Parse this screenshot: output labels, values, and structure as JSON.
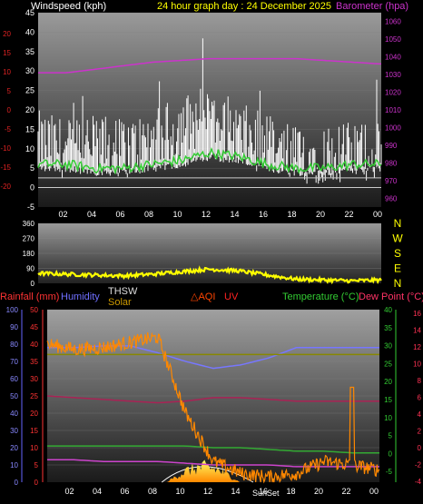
{
  "header": {
    "wind_title": "Windspeed (kph)",
    "graph_title": "24 hour graph day : 24 December 2025",
    "baro_title": "Barometer (hpa)"
  },
  "x_ticks": [
    "02",
    "04",
    "06",
    "08",
    "10",
    "12",
    "14",
    "16",
    "18",
    "20",
    "22",
    "00"
  ],
  "mid_panel": {
    "y_ticks": [
      "360",
      "270",
      "180",
      "90",
      "0"
    ],
    "compass": [
      "N",
      "W",
      "S",
      "E",
      "N"
    ]
  },
  "bottom_header": {
    "rainfall": "Rainfall (mm)",
    "humidity": "Humidity",
    "thsw": "THSW",
    "solar": "Solar",
    "aqi": "AQI",
    "uv": "UV",
    "temperature": "Temperature (°C)",
    "dewpoint": "Dew Point (°C)"
  },
  "sunset_label": "SunSet",
  "colors": {
    "wind_gust": "#ffffff",
    "wind_avg": "#33cc33",
    "barometer": "#cc33cc",
    "wind_dir": "#ffff00",
    "rain": "#ff4444",
    "humidity": "#7777ff",
    "temperature": "#33aa33",
    "dewpoint": "#aa2255",
    "solar": "#ffaa00",
    "uv_thsw": "#ff8800",
    "aqi": "#ff4400"
  },
  "chart_data": [
    {
      "type": "line",
      "panel": "wind-barometer",
      "x": [
        "00",
        "02",
        "04",
        "06",
        "08",
        "10",
        "12",
        "14",
        "16",
        "18",
        "20",
        "22",
        "00"
      ],
      "left_axis": {
        "label": "Windspeed (kph)",
        "ylim": [
          -5,
          45
        ],
        "ticks": [
          "45",
          "40",
          "35",
          "30",
          "25",
          "20",
          "15",
          "10",
          "5",
          "0",
          "-5"
        ]
      },
      "right_axis": {
        "label": "Barometer (hpa)",
        "ylim": [
          955,
          1065
        ],
        "ticks": [
          "1060",
          "1050",
          "1040",
          "1030",
          "1020",
          "1010",
          "1000",
          "990",
          "980",
          "970",
          "960"
        ]
      },
      "series": [
        {
          "name": "Wind Gust",
          "axis": "left",
          "values": [
            12,
            10,
            11,
            10,
            12,
            16,
            19,
            14,
            11,
            8,
            9,
            9,
            10
          ]
        },
        {
          "name": "Wind Average",
          "axis": "left",
          "values": [
            6,
            6,
            5,
            5,
            6,
            7,
            9,
            8,
            6,
            5,
            5,
            6,
            6
          ]
        },
        {
          "name": "Barometer",
          "axis": "right",
          "values": [
            1031,
            1031,
            1033,
            1035,
            1037,
            1038,
            1039,
            1039,
            1039,
            1039,
            1038,
            1037,
            1036
          ]
        }
      ]
    },
    {
      "type": "line",
      "panel": "wind-direction",
      "x": [
        "00",
        "02",
        "04",
        "06",
        "08",
        "10",
        "12",
        "14",
        "16",
        "18",
        "20",
        "22",
        "00"
      ],
      "ylim": [
        0,
        360
      ],
      "series": [
        {
          "name": "Wind Direction",
          "values": [
            60,
            55,
            50,
            45,
            55,
            70,
            85,
            75,
            50,
            25,
            20,
            15,
            20
          ]
        }
      ]
    },
    {
      "type": "line",
      "panel": "multi",
      "x": [
        "00",
        "02",
        "04",
        "06",
        "08",
        "10",
        "12",
        "14",
        "16",
        "18",
        "20",
        "22",
        "00"
      ],
      "left_axis": {
        "ticks": [
          "100",
          "90",
          "80",
          "70",
          "60",
          "50",
          "40",
          "30",
          "20",
          "10",
          "0"
        ],
        "ylim": [
          0,
          100
        ]
      },
      "rain_axis": {
        "ticks": [
          "50",
          "45",
          "40",
          "35",
          "30",
          "25",
          "20",
          "15",
          "10",
          "5",
          "0"
        ],
        "ylim": [
          0,
          50
        ]
      },
      "right_axis_temp": {
        "ticks": [
          "40",
          "35",
          "30",
          "25",
          "20",
          "15",
          "10",
          "5",
          "0",
          "-5"
        ],
        "ylim": [
          -8,
          40
        ]
      },
      "right_axis_dew": {
        "ticks": [
          "16",
          "14",
          "12",
          "10",
          "8",
          "6",
          "4",
          "2",
          "0",
          "-2",
          "-4"
        ],
        "ylim": [
          -4,
          17
        ]
      },
      "series": [
        {
          "name": "Humidity",
          "values": [
            78,
            78,
            79,
            79,
            75,
            70,
            66,
            68,
            72,
            78,
            78,
            78,
            78
          ]
        },
        {
          "name": "Temperature",
          "values": [
            1,
            1,
            1,
            1,
            1,
            0,
            0,
            0,
            0,
            -1,
            -1,
            -1,
            -1
          ]
        },
        {
          "name": "Dew Point",
          "values": [
            6,
            6,
            6,
            6,
            6,
            7,
            7,
            6,
            6,
            6,
            6,
            6,
            6
          ]
        },
        {
          "name": "THSW",
          "values": [
            35,
            33,
            35,
            34,
            38,
            6,
            2,
            -4,
            -6,
            -1,
            -5,
            -4,
            -5
          ]
        },
        {
          "name": "Solar",
          "values": [
            0,
            0,
            0,
            0,
            0,
            10,
            25,
            15,
            0,
            0,
            0,
            0,
            0
          ]
        }
      ]
    }
  ]
}
